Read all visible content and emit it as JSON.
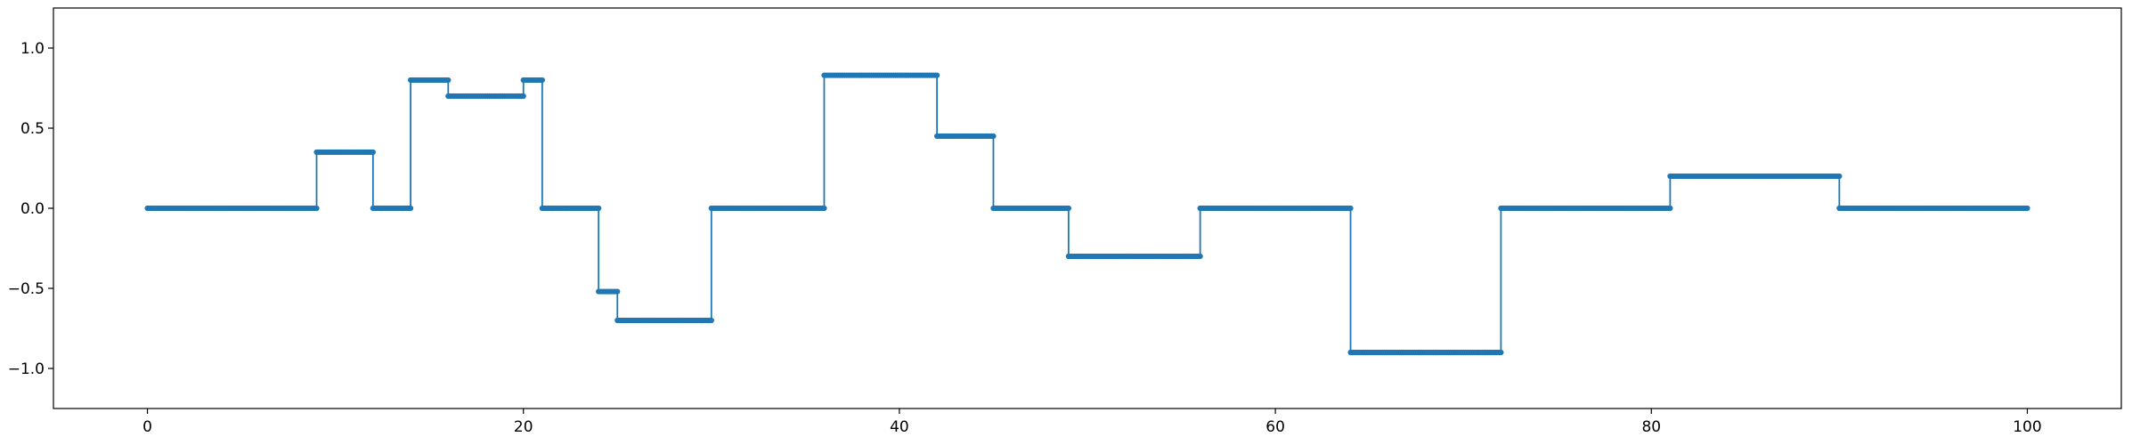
{
  "chart_data": {
    "type": "line",
    "title": "",
    "xlabel": "",
    "ylabel": "",
    "xlim": [
      -5,
      105
    ],
    "ylim": [
      -1.25,
      1.25
    ],
    "x_ticks": [
      0,
      20,
      40,
      60,
      80,
      100
    ],
    "x_tick_labels": [
      "0",
      "20",
      "40",
      "60",
      "80",
      "100"
    ],
    "y_ticks": [
      -1.0,
      -0.5,
      0.0,
      0.5,
      1.0
    ],
    "y_tick_labels": [
      "−1.0",
      "−0.5",
      "0.0",
      "0.5",
      "1.0"
    ],
    "grid": false,
    "legend": "none",
    "series": [
      {
        "style": "step-post",
        "color": "#1f77b4",
        "marker": "dot",
        "segments": [
          {
            "x_start": 0,
            "x_end": 9,
            "y": 0.0
          },
          {
            "x_start": 9,
            "x_end": 12,
            "y": 0.35
          },
          {
            "x_start": 12,
            "x_end": 14,
            "y": 0.0
          },
          {
            "x_start": 14,
            "x_end": 16,
            "y": 0.8
          },
          {
            "x_start": 16,
            "x_end": 20,
            "y": 0.7
          },
          {
            "x_start": 20,
            "x_end": 21,
            "y": 0.8
          },
          {
            "x_start": 21,
            "x_end": 24,
            "y": 0.0
          },
          {
            "x_start": 24,
            "x_end": 25,
            "y": -0.52
          },
          {
            "x_start": 25,
            "x_end": 30,
            "y": -0.7
          },
          {
            "x_start": 30,
            "x_end": 36,
            "y": 0.0
          },
          {
            "x_start": 36,
            "x_end": 42,
            "y": 0.83
          },
          {
            "x_start": 42,
            "x_end": 45,
            "y": 0.45
          },
          {
            "x_start": 45,
            "x_end": 49,
            "y": 0.0
          },
          {
            "x_start": 49,
            "x_end": 56,
            "y": -0.3
          },
          {
            "x_start": 56,
            "x_end": 64,
            "y": 0.0
          },
          {
            "x_start": 64,
            "x_end": 72,
            "y": -0.9
          },
          {
            "x_start": 72,
            "x_end": 81,
            "y": 0.0
          },
          {
            "x_start": 81,
            "x_end": 90,
            "y": 0.2
          },
          {
            "x_start": 90,
            "x_end": 100,
            "y": 0.0
          }
        ]
      }
    ]
  }
}
